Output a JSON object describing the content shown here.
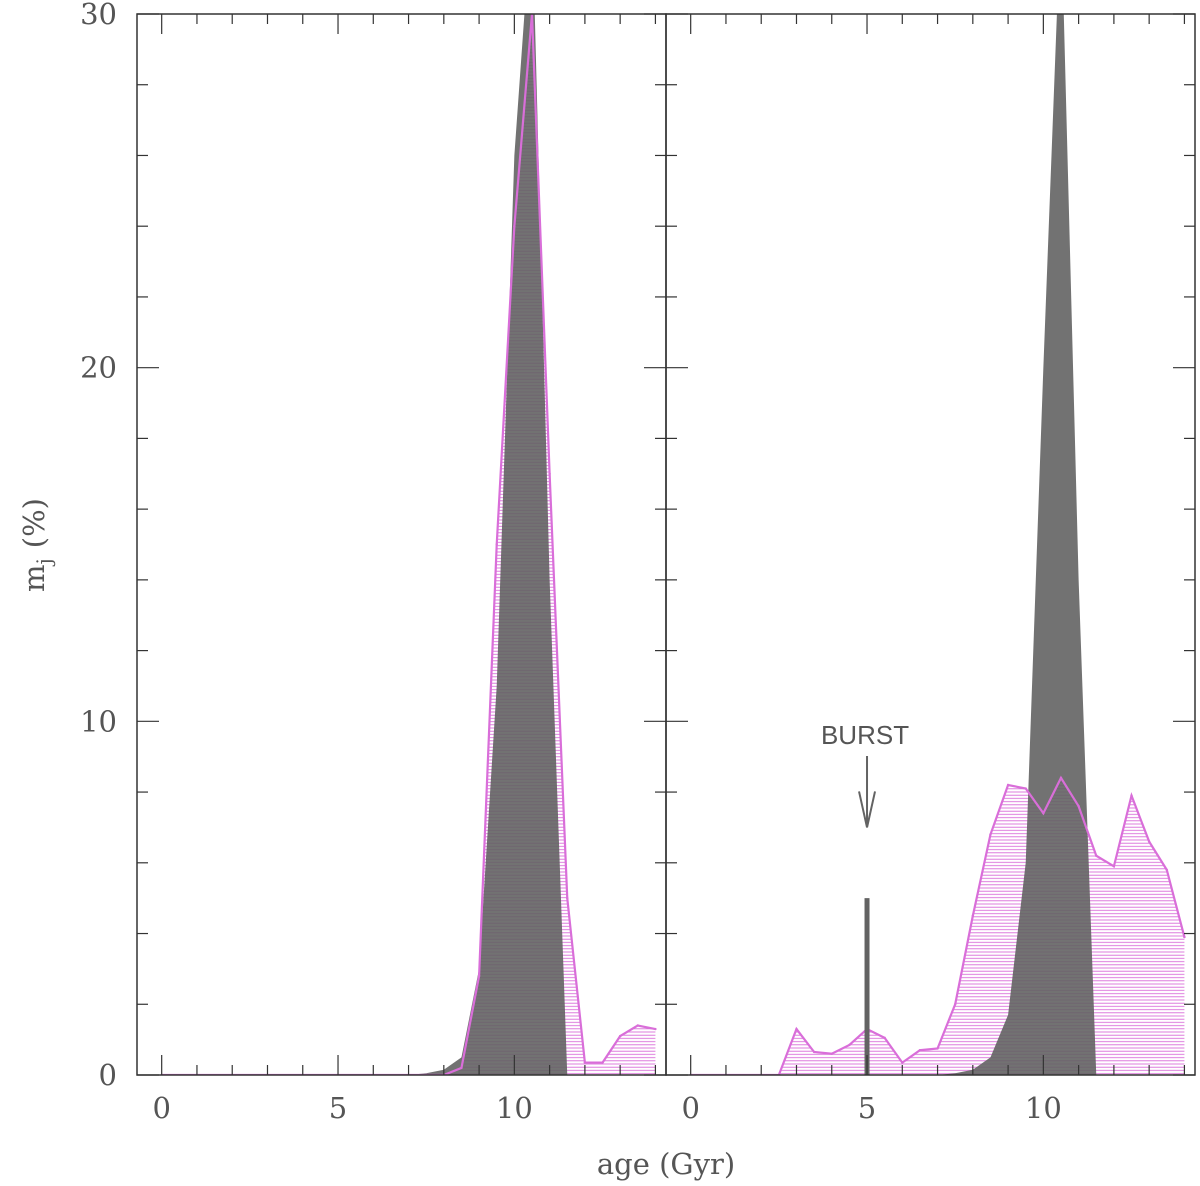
{
  "chart_data": {
    "type": "area",
    "xlabel": "age (Gyr)",
    "ylabel": "m",
    "ylabel_sub": "j",
    "ylabel_unit": "(%)",
    "xlim": [
      -0.7,
      14.3
    ],
    "ylim": [
      0,
      30
    ],
    "colors": {
      "dark": "#636363",
      "magenta": "#d96ed9",
      "frame": "#333333",
      "text": "#555555"
    },
    "panels": [
      {
        "x_ticks": [
          "0",
          "5",
          "10"
        ],
        "y_ticks": [
          "0",
          "10",
          "20",
          "30"
        ],
        "dark_area": {
          "x": [
            0,
            7.0,
            7.5,
            8.0,
            8.5,
            9.0,
            9.5,
            10.0,
            10.5,
            11.0,
            11.5
          ],
          "upper": [
            0,
            0,
            0.05,
            0.15,
            0.5,
            3.0,
            11.0,
            26.0,
            33.0,
            14.0,
            0
          ],
          "lower": [
            0,
            0,
            0,
            0,
            0,
            0,
            0,
            0,
            0,
            0,
            0
          ]
        },
        "magenta_series": {
          "x": [
            0,
            7.0,
            7.5,
            8.0,
            8.5,
            9.0,
            9.5,
            10.0,
            10.5,
            11.0,
            11.5,
            12.0,
            12.5,
            13.0,
            13.5,
            14.0
          ],
          "y": [
            0,
            0,
            0,
            0,
            0.2,
            2.8,
            15.0,
            24.0,
            30.0,
            17.0,
            5.0,
            0.35,
            0.35,
            1.1,
            1.4,
            1.3
          ]
        },
        "annotation": null
      },
      {
        "x_ticks": [
          "0",
          "5",
          "10"
        ],
        "y_ticks": [],
        "dark_area": {
          "x": [
            0,
            7.0,
            7.5,
            8.0,
            8.5,
            9.0,
            9.5,
            10.0,
            10.5,
            11.0,
            11.5
          ],
          "upper": [
            0,
            0,
            0.05,
            0.15,
            0.5,
            1.7,
            6.0,
            20.0,
            33.0,
            14.0,
            0
          ],
          "lower": [
            0,
            0,
            0,
            0,
            0,
            0,
            0,
            0,
            0,
            0,
            0
          ]
        },
        "magenta_series": {
          "x": [
            0,
            2.5,
            3.0,
            3.5,
            4.0,
            4.5,
            5.0,
            5.5,
            6.0,
            6.5,
            7.0,
            7.5,
            8.0,
            8.5,
            9.0,
            9.5,
            10.0,
            10.5,
            11.0,
            11.5,
            12.0,
            12.5,
            13.0,
            13.5,
            14.0
          ],
          "y": [
            0,
            0,
            1.3,
            0.65,
            0.6,
            0.85,
            1.3,
            1.05,
            0.35,
            0.7,
            0.75,
            2.0,
            4.5,
            6.8,
            8.2,
            8.1,
            7.4,
            8.4,
            7.6,
            6.2,
            5.9,
            7.9,
            6.6,
            5.8,
            3.9
          ]
        },
        "burst_bar": {
          "x": 5.0,
          "height": 5.0
        },
        "annotation": {
          "text": "BURST",
          "x": 5.0,
          "y": 9.5,
          "arrow_to_y": 7.0
        }
      }
    ]
  }
}
